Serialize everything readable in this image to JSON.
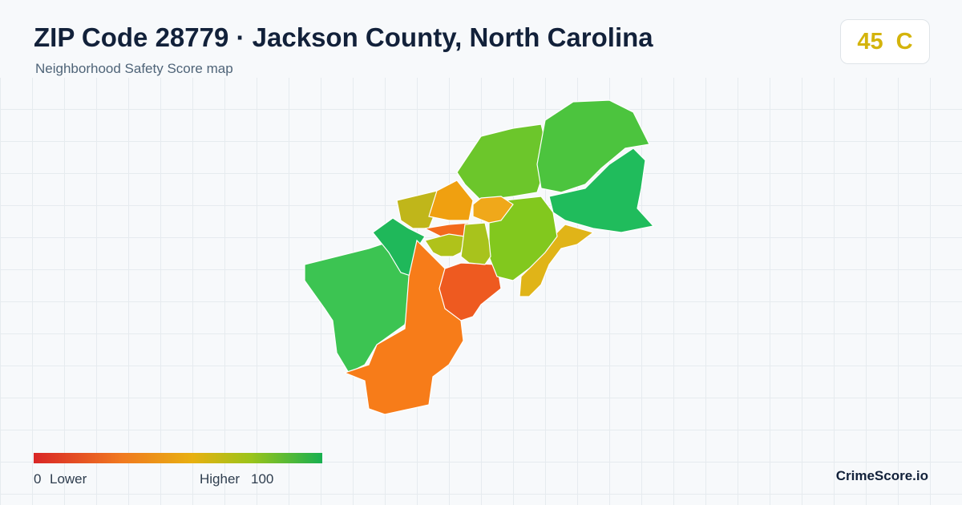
{
  "header": {
    "title": "ZIP Code 28779 · Jackson County, North Carolina",
    "subtitle": "Neighborhood Safety Score map"
  },
  "score": {
    "value": 45,
    "grade": "C"
  },
  "legend": {
    "min": 0,
    "low_label": "Lower",
    "high_label": "Higher",
    "max": 100
  },
  "brand": "CrimeScore.io"
}
